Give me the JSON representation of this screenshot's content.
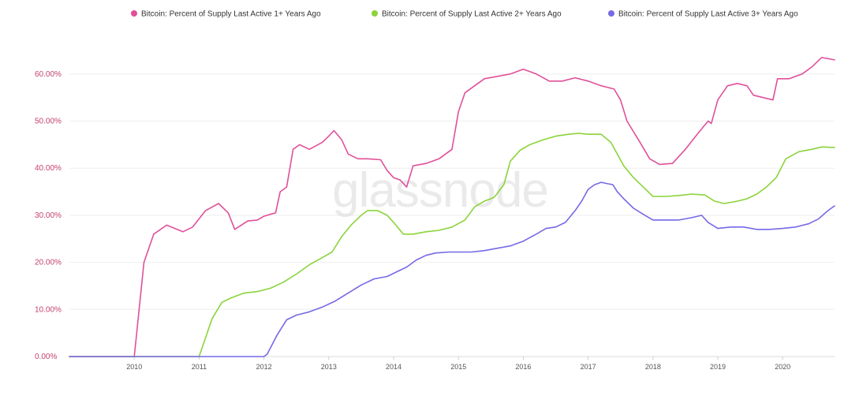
{
  "watermark": "glassnode",
  "chart_data": {
    "type": "line",
    "ylim": [
      0,
      0.6
    ],
    "xlim": [
      2009.0,
      2020.8
    ],
    "yticks": [
      {
        "value": 0.0,
        "label": "0.00%"
      },
      {
        "value": 0.1,
        "label": "10.00%"
      },
      {
        "value": 0.2,
        "label": "20.00%"
      },
      {
        "value": 0.3,
        "label": "30.00%"
      },
      {
        "value": 0.4,
        "label": "40.00%"
      },
      {
        "value": 0.5,
        "label": "50.00%"
      },
      {
        "value": 0.6,
        "label": "60.00%"
      }
    ],
    "xticks": [
      {
        "value": 2010,
        "label": "2010"
      },
      {
        "value": 2011,
        "label": "2011"
      },
      {
        "value": 2012,
        "label": "2012"
      },
      {
        "value": 2013,
        "label": "2013"
      },
      {
        "value": 2014,
        "label": "2014"
      },
      {
        "value": 2015,
        "label": "2015"
      },
      {
        "value": 2016,
        "label": "2016"
      },
      {
        "value": 2017,
        "label": "2017"
      },
      {
        "value": 2018,
        "label": "2018"
      },
      {
        "value": 2019,
        "label": "2019"
      },
      {
        "value": 2020,
        "label": "2020"
      }
    ],
    "grid": true,
    "legend_position": "top-right",
    "series": [
      {
        "name": "Bitcoin: Percent of Supply Last Active 1+ Years Ago",
        "color": "#e0509a",
        "points": [
          [
            2009.0,
            0
          ],
          [
            2010.0,
            0
          ],
          [
            2010.03,
            0.04
          ],
          [
            2010.15,
            0.2
          ],
          [
            2010.3,
            0.26
          ],
          [
            2010.5,
            0.279
          ],
          [
            2010.75,
            0.265
          ],
          [
            2010.9,
            0.275
          ],
          [
            2011.1,
            0.31
          ],
          [
            2011.3,
            0.325
          ],
          [
            2011.45,
            0.305
          ],
          [
            2011.55,
            0.27
          ],
          [
            2011.75,
            0.288
          ],
          [
            2011.9,
            0.29
          ],
          [
            2012.0,
            0.298
          ],
          [
            2012.1,
            0.302
          ],
          [
            2012.18,
            0.305
          ],
          [
            2012.25,
            0.35
          ],
          [
            2012.35,
            0.36
          ],
          [
            2012.45,
            0.44
          ],
          [
            2012.55,
            0.45
          ],
          [
            2012.7,
            0.44
          ],
          [
            2012.9,
            0.455
          ],
          [
            2013.0,
            0.468
          ],
          [
            2013.08,
            0.48
          ],
          [
            2013.2,
            0.46
          ],
          [
            2013.3,
            0.43
          ],
          [
            2013.45,
            0.42
          ],
          [
            2013.6,
            0.42
          ],
          [
            2013.8,
            0.418
          ],
          [
            2013.9,
            0.395
          ],
          [
            2014.0,
            0.38
          ],
          [
            2014.1,
            0.375
          ],
          [
            2014.2,
            0.36
          ],
          [
            2014.3,
            0.405
          ],
          [
            2014.5,
            0.41
          ],
          [
            2014.7,
            0.42
          ],
          [
            2014.9,
            0.44
          ],
          [
            2015.0,
            0.52
          ],
          [
            2015.1,
            0.56
          ],
          [
            2015.25,
            0.575
          ],
          [
            2015.4,
            0.59
          ],
          [
            2015.6,
            0.595
          ],
          [
            2015.8,
            0.6
          ],
          [
            2016.0,
            0.61
          ],
          [
            2016.2,
            0.6
          ],
          [
            2016.4,
            0.585
          ],
          [
            2016.6,
            0.585
          ],
          [
            2016.8,
            0.592
          ],
          [
            2017.0,
            0.585
          ],
          [
            2017.2,
            0.575
          ],
          [
            2017.4,
            0.568
          ],
          [
            2017.5,
            0.545
          ],
          [
            2017.6,
            0.5
          ],
          [
            2017.8,
            0.455
          ],
          [
            2017.95,
            0.42
          ],
          [
            2018.1,
            0.408
          ],
          [
            2018.3,
            0.41
          ],
          [
            2018.5,
            0.44
          ],
          [
            2018.7,
            0.475
          ],
          [
            2018.85,
            0.5
          ],
          [
            2018.9,
            0.495
          ],
          [
            2019.0,
            0.545
          ],
          [
            2019.15,
            0.575
          ],
          [
            2019.3,
            0.58
          ],
          [
            2019.45,
            0.575
          ],
          [
            2019.55,
            0.555
          ],
          [
            2019.7,
            0.55
          ],
          [
            2019.85,
            0.545
          ],
          [
            2019.92,
            0.59
          ],
          [
            2020.1,
            0.59
          ],
          [
            2020.3,
            0.6
          ],
          [
            2020.45,
            0.615
          ],
          [
            2020.6,
            0.635
          ],
          [
            2020.8,
            0.63
          ]
        ]
      },
      {
        "name": "Bitcoin: Percent of Supply Last Active 2+ Years Ago",
        "color": "#8bd33b",
        "points": [
          [
            2009.0,
            0
          ],
          [
            2011.0,
            0
          ],
          [
            2011.05,
            0.02
          ],
          [
            2011.2,
            0.08
          ],
          [
            2011.35,
            0.115
          ],
          [
            2011.5,
            0.125
          ],
          [
            2011.7,
            0.135
          ],
          [
            2011.9,
            0.138
          ],
          [
            2012.1,
            0.145
          ],
          [
            2012.3,
            0.158
          ],
          [
            2012.5,
            0.175
          ],
          [
            2012.7,
            0.195
          ],
          [
            2012.9,
            0.21
          ],
          [
            2013.05,
            0.222
          ],
          [
            2013.2,
            0.255
          ],
          [
            2013.35,
            0.28
          ],
          [
            2013.5,
            0.3
          ],
          [
            2013.6,
            0.31
          ],
          [
            2013.75,
            0.31
          ],
          [
            2013.9,
            0.3
          ],
          [
            2014.0,
            0.285
          ],
          [
            2014.15,
            0.26
          ],
          [
            2014.3,
            0.26
          ],
          [
            2014.5,
            0.265
          ],
          [
            2014.7,
            0.268
          ],
          [
            2014.9,
            0.275
          ],
          [
            2015.1,
            0.29
          ],
          [
            2015.25,
            0.318
          ],
          [
            2015.4,
            0.33
          ],
          [
            2015.55,
            0.338
          ],
          [
            2015.7,
            0.365
          ],
          [
            2015.8,
            0.415
          ],
          [
            2015.95,
            0.438
          ],
          [
            2016.1,
            0.45
          ],
          [
            2016.3,
            0.46
          ],
          [
            2016.5,
            0.468
          ],
          [
            2016.7,
            0.472
          ],
          [
            2016.85,
            0.474
          ],
          [
            2017.0,
            0.472
          ],
          [
            2017.2,
            0.472
          ],
          [
            2017.35,
            0.455
          ],
          [
            2017.45,
            0.43
          ],
          [
            2017.55,
            0.405
          ],
          [
            2017.7,
            0.38
          ],
          [
            2017.85,
            0.36
          ],
          [
            2018.0,
            0.34
          ],
          [
            2018.2,
            0.34
          ],
          [
            2018.4,
            0.342
          ],
          [
            2018.6,
            0.345
          ],
          [
            2018.8,
            0.343
          ],
          [
            2018.95,
            0.33
          ],
          [
            2019.1,
            0.325
          ],
          [
            2019.3,
            0.33
          ],
          [
            2019.45,
            0.335
          ],
          [
            2019.6,
            0.345
          ],
          [
            2019.75,
            0.36
          ],
          [
            2019.9,
            0.38
          ],
          [
            2020.05,
            0.42
          ],
          [
            2020.25,
            0.435
          ],
          [
            2020.45,
            0.44
          ],
          [
            2020.6,
            0.445
          ],
          [
            2020.8,
            0.444
          ]
        ]
      },
      {
        "name": "Bitcoin: Percent of Supply Last Active 3+ Years Ago",
        "color": "#7569e6",
        "points": [
          [
            2009.0,
            0
          ],
          [
            2012.0,
            0
          ],
          [
            2012.05,
            0.005
          ],
          [
            2012.2,
            0.045
          ],
          [
            2012.35,
            0.078
          ],
          [
            2012.5,
            0.088
          ],
          [
            2012.7,
            0.095
          ],
          [
            2012.9,
            0.105
          ],
          [
            2013.1,
            0.118
          ],
          [
            2013.3,
            0.135
          ],
          [
            2013.5,
            0.152
          ],
          [
            2013.7,
            0.165
          ],
          [
            2013.9,
            0.17
          ],
          [
            2014.05,
            0.18
          ],
          [
            2014.2,
            0.19
          ],
          [
            2014.35,
            0.205
          ],
          [
            2014.5,
            0.215
          ],
          [
            2014.65,
            0.22
          ],
          [
            2014.85,
            0.222
          ],
          [
            2015.0,
            0.222
          ],
          [
            2015.2,
            0.222
          ],
          [
            2015.4,
            0.225
          ],
          [
            2015.6,
            0.23
          ],
          [
            2015.8,
            0.235
          ],
          [
            2016.0,
            0.245
          ],
          [
            2016.2,
            0.26
          ],
          [
            2016.35,
            0.272
          ],
          [
            2016.5,
            0.275
          ],
          [
            2016.65,
            0.285
          ],
          [
            2016.8,
            0.31
          ],
          [
            2016.9,
            0.33
          ],
          [
            2017.0,
            0.355
          ],
          [
            2017.1,
            0.365
          ],
          [
            2017.2,
            0.37
          ],
          [
            2017.3,
            0.367
          ],
          [
            2017.38,
            0.365
          ],
          [
            2017.45,
            0.35
          ],
          [
            2017.55,
            0.335
          ],
          [
            2017.7,
            0.315
          ],
          [
            2017.85,
            0.302
          ],
          [
            2018.0,
            0.29
          ],
          [
            2018.2,
            0.29
          ],
          [
            2018.4,
            0.29
          ],
          [
            2018.6,
            0.295
          ],
          [
            2018.75,
            0.3
          ],
          [
            2018.85,
            0.285
          ],
          [
            2019.0,
            0.272
          ],
          [
            2019.2,
            0.275
          ],
          [
            2019.4,
            0.275
          ],
          [
            2019.6,
            0.27
          ],
          [
            2019.8,
            0.27
          ],
          [
            2020.0,
            0.272
          ],
          [
            2020.2,
            0.275
          ],
          [
            2020.4,
            0.282
          ],
          [
            2020.55,
            0.292
          ],
          [
            2020.7,
            0.31
          ],
          [
            2020.8,
            0.32
          ]
        ]
      }
    ]
  }
}
